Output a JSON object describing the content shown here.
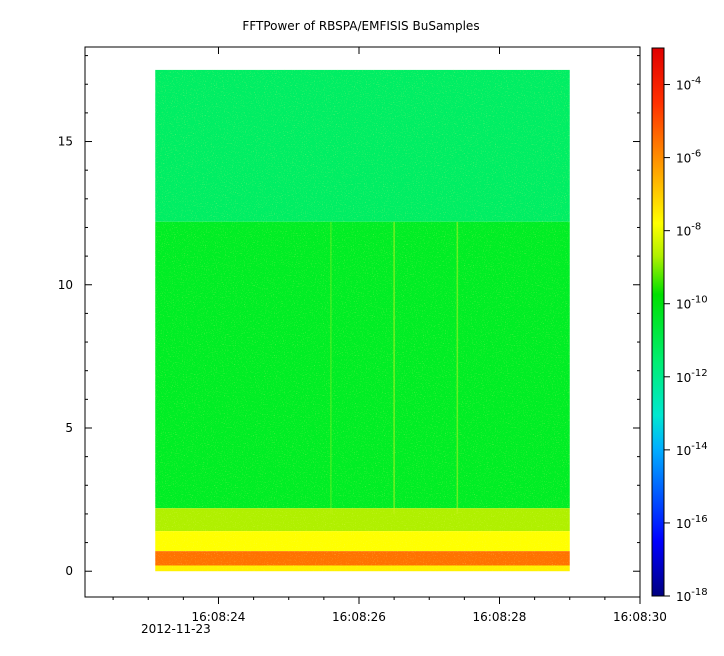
{
  "chart_data": {
    "type": "heatmap",
    "title": "FFTPower of RBSPA/EMFISIS  BuSamples",
    "xlabel": "",
    "ylabel": "",
    "x_tick_labels": [
      "16:08:24",
      "16:08:26",
      "16:08:28",
      "16:08:30"
    ],
    "x_date_label": "2012-11-23",
    "x_ticks_seconds": [
      24,
      26,
      28,
      30
    ],
    "x_minor_step_seconds": 0.5,
    "xlim": [
      "16:08:22.1",
      "16:08:30.0"
    ],
    "data_time_range": [
      "16:08:23.1",
      "16:08:29.0"
    ],
    "y_ticks": [
      0,
      5,
      10,
      15
    ],
    "ylim": [
      -0.9,
      18.3
    ],
    "data_y_range": [
      0,
      17.5
    ],
    "colorbar": {
      "scale": "log",
      "range": [
        1e-18,
        0.001
      ],
      "tick_labels": [
        "10",
        "10",
        "10",
        "10",
        "10",
        "10",
        "10",
        "10"
      ],
      "tick_exponents": [
        "-4",
        "-6",
        "-8",
        "-10",
        "-12",
        "-14",
        "-16",
        "-18"
      ],
      "tick_log_values": [
        -4,
        -6,
        -8,
        -10,
        -12,
        -14,
        -16,
        -18
      ]
    },
    "bands": [
      {
        "y_from": 12.2,
        "y_to": 17.5,
        "log_power": -11.6
      },
      {
        "y_from": 2.2,
        "y_to": 12.2,
        "log_power": -10.6
      },
      {
        "y_from": 1.4,
        "y_to": 2.2,
        "log_power": -9.0
      },
      {
        "y_from": 0.7,
        "y_to": 1.4,
        "log_power": -8.0
      },
      {
        "y_from": 0.2,
        "y_to": 0.7,
        "log_power": -5.8
      },
      {
        "y_from": 0,
        "y_to": 0.2,
        "log_power": -7.8
      }
    ],
    "colors": {
      "colormap": [
        "#000080",
        "#0000ff",
        "#00b0ff",
        "#00e8d0",
        "#00ee70",
        "#00ee00",
        "#b0f000",
        "#ffff00",
        "#ffa000",
        "#ff3000",
        "#e00000"
      ],
      "frame": "#000000",
      "background": "#ffffff"
    },
    "grid": false,
    "legend": "colorbar-right"
  }
}
